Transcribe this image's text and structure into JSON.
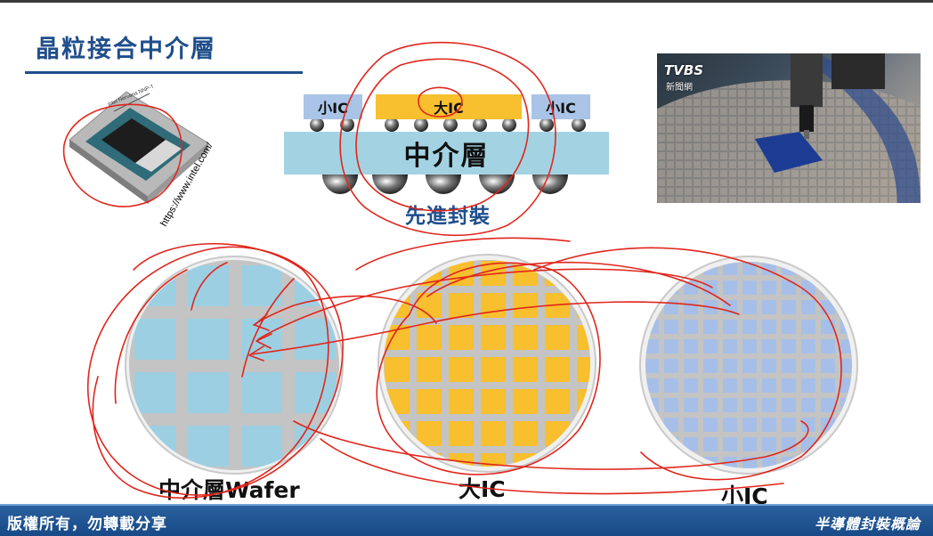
{
  "slide": {
    "title": "晶粒接合中介層"
  },
  "chip_photo": {
    "watermark": "https://www.intel.com/"
  },
  "news_photo": {
    "logo_text": "TVBS",
    "logo_sub": "新聞網"
  },
  "package_diagram": {
    "small_ic_left": "小IC",
    "big_ic": "大IC",
    "small_ic_right": "小IC",
    "interposer": "中介層",
    "caption": "先進封裝"
  },
  "wafers": [
    {
      "label": "中介層Wafer",
      "color": "#9ccfe2",
      "grid": "#c4c4c4"
    },
    {
      "label": "大IC",
      "color": "#f8bf2e",
      "grid": "#c4c4c4"
    },
    {
      "label": "小IC",
      "color": "#a6bfe8",
      "grid": "#c4c4c4"
    }
  ],
  "footer": {
    "left": "版權所有，勿轉載分享",
    "right": "半導體封裝概論"
  },
  "colors": {
    "title": "#1f4e8c",
    "footer_bg": "#174a86",
    "annotation_pen": "#e0261c"
  }
}
